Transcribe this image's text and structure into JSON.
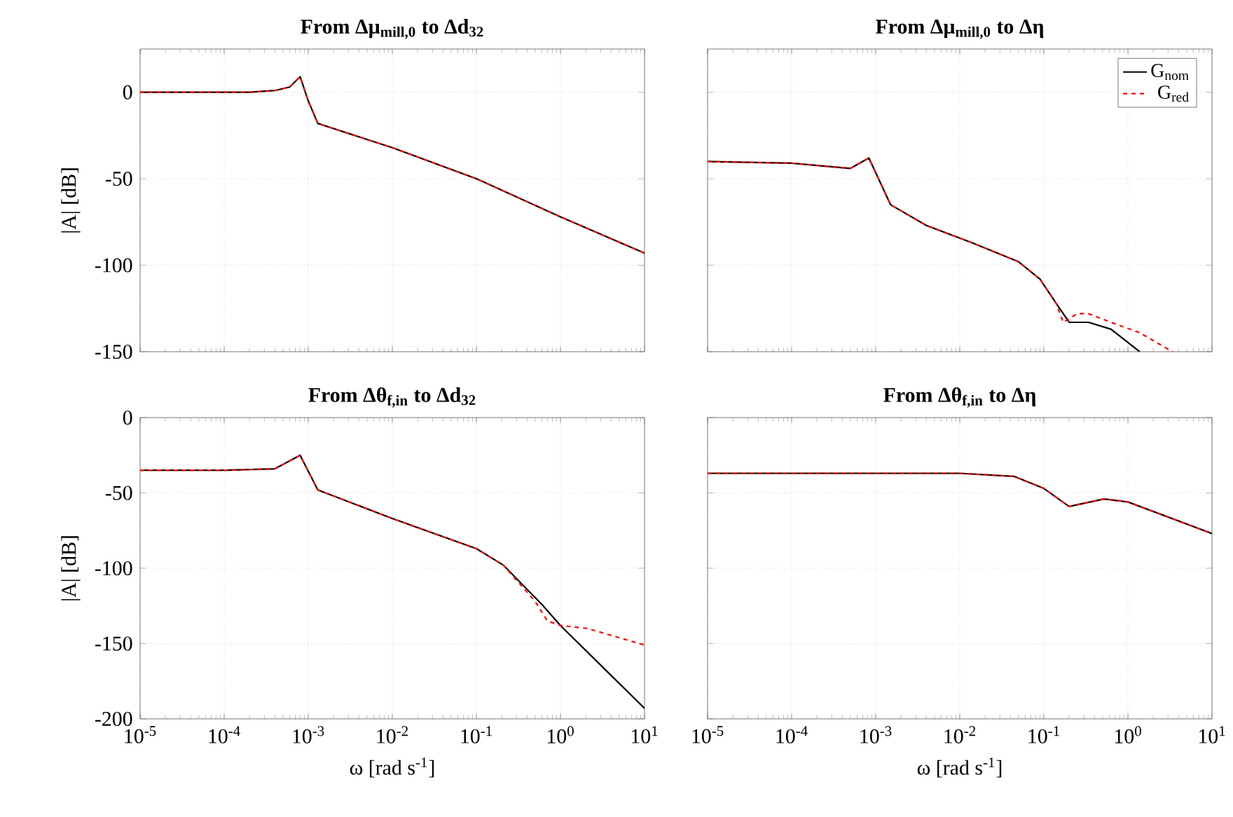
{
  "chart_data": [
    {
      "type": "line",
      "title": "From Δμ$_{mill,0}$ to Δd$_{32}$",
      "ylabel": "|A| [dB]",
      "log": "x",
      "grid": true,
      "legend": false,
      "tick_labels": "y",
      "xlim": [
        1e-05,
        10
      ],
      "ylim": [
        -150,
        25
      ],
      "xticks": [
        {
          "value": 1e-05,
          "label": null
        },
        {
          "value": 0.0001,
          "label": null
        },
        {
          "value": 0.001,
          "label": null
        },
        {
          "value": 0.01,
          "label": null
        },
        {
          "value": 0.1,
          "label": null
        },
        {
          "value": 1,
          "label": null
        },
        {
          "value": 10,
          "label": null
        }
      ],
      "yticks": [
        -150,
        -100,
        -50,
        0
      ],
      "series": [
        {
          "color": "#000000",
          "line_style": "solid",
          "x": [
            1e-05,
            0.0001,
            0.0002,
            0.0004,
            0.0006,
            0.0008,
            0.001,
            0.0013,
            0.002,
            0.01,
            0.1,
            1,
            10
          ],
          "values": [
            0,
            0,
            0,
            1,
            3,
            9,
            -5,
            -18,
            -21,
            -32,
            -50,
            -72,
            -93
          ]
        },
        {
          "color": "#ff0000",
          "line_style": "dashed",
          "x": [
            1e-05,
            0.0001,
            0.0002,
            0.0004,
            0.0006,
            0.0008,
            0.001,
            0.0013,
            0.002,
            0.01,
            0.1,
            1,
            10
          ],
          "values": [
            0,
            0,
            0,
            1,
            3,
            9,
            -5,
            -18,
            -21,
            -32,
            -50,
            -72,
            -93
          ]
        }
      ]
    },
    {
      "type": "line",
      "title": "From Δμ$_{mill,0}$ to Δη",
      "log": "x",
      "grid": true,
      "legend": "top right",
      "tick_labels": false,
      "xlim": [
        1e-05,
        10
      ],
      "ylim": [
        -150,
        25
      ],
      "xticks": [
        {
          "value": 1e-05,
          "label": null
        },
        {
          "value": 0.0001,
          "label": null
        },
        {
          "value": 0.001,
          "label": null
        },
        {
          "value": 0.01,
          "label": null
        },
        {
          "value": 0.1,
          "label": null
        },
        {
          "value": 1,
          "label": null
        },
        {
          "value": 10,
          "label": null
        }
      ],
      "yticks": [
        {
          "value": -150,
          "label": null
        },
        {
          "value": -100,
          "label": null
        },
        {
          "value": -50,
          "label": null
        },
        {
          "value": 0,
          "label": null
        }
      ],
      "series": [
        {
          "name": "G$_{nom}$",
          "color": "#000000",
          "line_style": "solid",
          "x": [
            1e-05,
            0.0001,
            0.0005,
            0.00083,
            0.0015,
            0.004,
            0.014,
            0.05,
            0.09,
            0.14,
            0.2,
            0.34,
            0.63,
            1.38
          ],
          "values": [
            -40,
            -41,
            -44,
            -38,
            -65,
            -77,
            -87,
            -98,
            -108,
            -122,
            -133,
            -133,
            -137,
            -150
          ]
        },
        {
          "name": "G$_{red}$",
          "color": "#ff0000",
          "line_style": "dashed",
          "x": [
            1e-05,
            0.0001,
            0.0005,
            0.00083,
            0.0015,
            0.004,
            0.014,
            0.05,
            0.09,
            0.14,
            0.17,
            0.25,
            0.34,
            0.63,
            1.38,
            3.4
          ],
          "values": [
            -40,
            -41,
            -44,
            -38,
            -65,
            -77,
            -87,
            -98,
            -108,
            -122,
            -133,
            -128,
            -128,
            -133,
            -139,
            -150
          ]
        }
      ]
    },
    {
      "type": "line",
      "title": "From Δθ$_{f,in}$ to Δd$_{32}$",
      "xlabel": "ω [rad s$^{-1}$]",
      "ylabel": "|A| [dB]",
      "log": "x",
      "grid": true,
      "legend": false,
      "xlim": [
        1e-05,
        10
      ],
      "ylim": [
        -200,
        0
      ],
      "xticks": [
        {
          "value": 1e-05,
          "label": "10$^{-5}$"
        },
        {
          "value": 0.0001,
          "label": "10$^{-4}$"
        },
        {
          "value": 0.001,
          "label": "10$^{-3}$"
        },
        {
          "value": 0.01,
          "label": "10$^{-2}$"
        },
        {
          "value": 0.1,
          "label": "10$^{-1}$"
        },
        {
          "value": 1,
          "label": "10$^{0}$"
        },
        {
          "value": 10,
          "label": "10$^{1}$"
        }
      ],
      "yticks": [
        -200,
        -150,
        -100,
        -50,
        0
      ],
      "series": [
        {
          "color": "#000000",
          "line_style": "solid",
          "x": [
            1e-05,
            0.0001,
            0.0004,
            0.0008,
            0.0013,
            0.01,
            0.1,
            0.21,
            0.6,
            1,
            10
          ],
          "values": [
            -35,
            -35,
            -34,
            -25,
            -48,
            -67,
            -87,
            -98,
            -124,
            -138,
            -193
          ]
        },
        {
          "color": "#ff0000",
          "line_style": "dashed",
          "x": [
            1e-05,
            0.0001,
            0.0004,
            0.0008,
            0.0013,
            0.01,
            0.1,
            0.21,
            0.5,
            0.7,
            1,
            2.1,
            10
          ],
          "values": [
            -35,
            -35,
            -34,
            -25,
            -48,
            -67,
            -87,
            -98,
            -122,
            -135,
            -138,
            -140,
            -151
          ]
        }
      ]
    },
    {
      "type": "line",
      "title": "From Δθ$_{f,in}$ to Δη",
      "xlabel": "ω [rad s$^{-1}$]",
      "log": "x",
      "grid": true,
      "legend": false,
      "tick_labels": "x",
      "xlim": [
        1e-05,
        10
      ],
      "ylim": [
        -200,
        0
      ],
      "xticks": [
        {
          "value": 1e-05,
          "label": "10$^{-5}$"
        },
        {
          "value": 0.0001,
          "label": "10$^{-4}$"
        },
        {
          "value": 0.001,
          "label": "10$^{-3}$"
        },
        {
          "value": 0.01,
          "label": "10$^{-2}$"
        },
        {
          "value": 0.1,
          "label": "10$^{-1}$"
        },
        {
          "value": 1,
          "label": "10$^{0}$"
        },
        {
          "value": 10,
          "label": "10$^{1}$"
        }
      ],
      "yticks": [
        {
          "value": -200,
          "label": null
        },
        {
          "value": -150,
          "label": null
        },
        {
          "value": -100,
          "label": null
        },
        {
          "value": -50,
          "label": null
        },
        {
          "value": 0,
          "label": null
        }
      ],
      "series": [
        {
          "color": "#000000",
          "line_style": "solid",
          "x": [
            1e-05,
            0.01,
            0.044,
            0.1,
            0.2,
            0.52,
            1,
            10
          ],
          "values": [
            -37,
            -37,
            -39,
            -47,
            -59,
            -54,
            -56,
            -77
          ]
        },
        {
          "color": "#ff0000",
          "line_style": "dashed",
          "x": [
            1e-05,
            0.01,
            0.044,
            0.1,
            0.2,
            0.52,
            1,
            10
          ],
          "values": [
            -37,
            -37,
            -39,
            -47,
            -59,
            -54,
            -56,
            -77
          ]
        }
      ]
    }
  ]
}
